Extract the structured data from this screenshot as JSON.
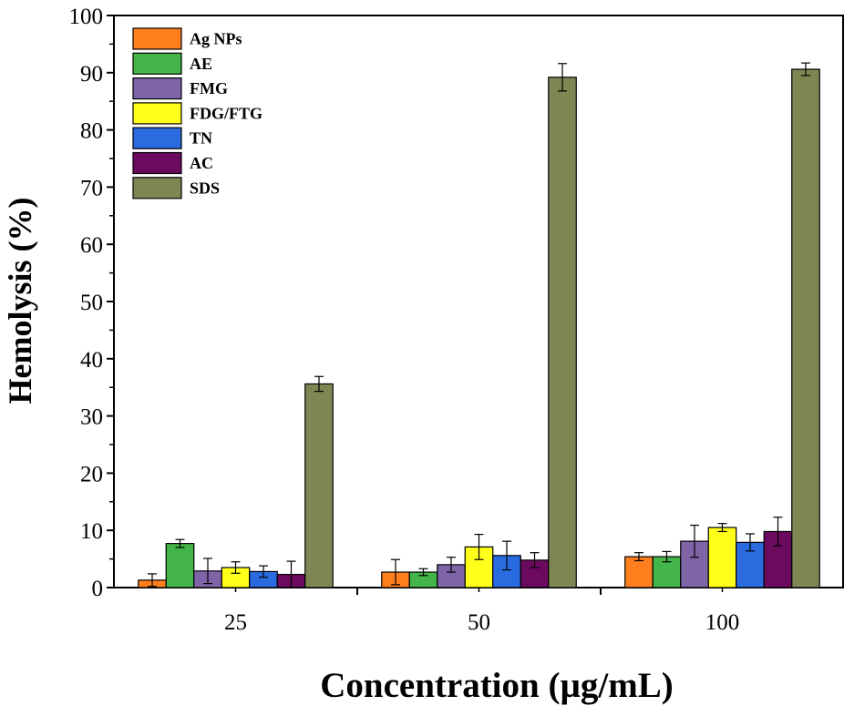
{
  "chart_data": {
    "type": "bar",
    "title": "",
    "xlabel": "Concentration (µg/mL)",
    "ylabel": "Hemolysis (%)",
    "categories": [
      "25",
      "50",
      "100"
    ],
    "ylim": [
      0,
      100
    ],
    "yticks": [
      0,
      10,
      20,
      30,
      40,
      50,
      60,
      70,
      80,
      90,
      100
    ],
    "ytick_labels": [
      "0",
      "10",
      "20",
      "30",
      "40",
      "50",
      "60",
      "70",
      "80",
      "90",
      "100"
    ],
    "legend_position": "top-left",
    "series": [
      {
        "name": "Ag NPs",
        "color": "#FF7F1E",
        "values": [
          1.3,
          2.7,
          5.4
        ],
        "errors": [
          1.1,
          2.2,
          0.7
        ]
      },
      {
        "name": "AE",
        "color": "#44B649",
        "values": [
          7.7,
          2.7,
          5.4
        ],
        "errors": [
          0.7,
          0.6,
          0.9
        ]
      },
      {
        "name": "FMG",
        "color": "#8064A8",
        "values": [
          2.9,
          4.0,
          8.1
        ],
        "errors": [
          2.2,
          1.3,
          2.8
        ]
      },
      {
        "name": "FDG/FTG",
        "color": "#FFFF1A",
        "values": [
          3.5,
          7.1,
          10.5
        ],
        "errors": [
          1.0,
          2.2,
          0.7
        ]
      },
      {
        "name": "TN",
        "color": "#2A6CE0",
        "values": [
          2.8,
          5.6,
          7.9
        ],
        "errors": [
          1.0,
          2.5,
          1.5
        ]
      },
      {
        "name": "AC",
        "color": "#6B0A5E",
        "values": [
          2.3,
          4.8,
          9.8
        ],
        "errors": [
          2.3,
          1.3,
          2.5
        ]
      },
      {
        "name": "SDS",
        "color": "#7F8654",
        "values": [
          35.6,
          89.2,
          90.6
        ],
        "errors": [
          1.3,
          2.4,
          1.1
        ]
      }
    ]
  }
}
